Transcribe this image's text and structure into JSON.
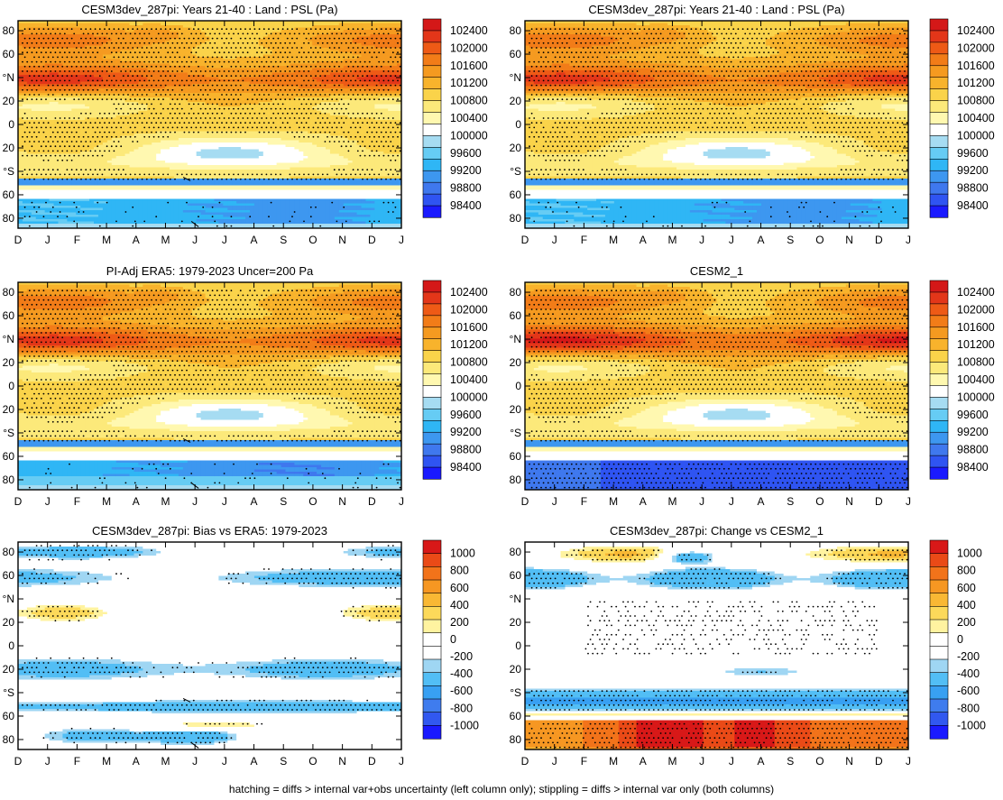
{
  "caption": "hatching = diffs > internal var+obs uncertainty (left column only); stippling = diffs > internal var only (both columns)",
  "colors": {
    "psl_scale": [
      "#1a1aff",
      "#2f54f2",
      "#3f78ee",
      "#3d97f0",
      "#2fb6f5",
      "#66ccf4",
      "#a6dcf2",
      "#ffffff",
      "#fff8b0",
      "#fce97a",
      "#fad34a",
      "#f8b32c",
      "#f59a20",
      "#f27c18",
      "#ee5a16",
      "#e33619",
      "#d41818"
    ],
    "diff_scale": [
      "#1a1aff",
      "#3158f0",
      "#3f7cee",
      "#38a0f2",
      "#52bef5",
      "#9fd6f3",
      "#ffffff",
      "#ffffff",
      "#fff3a0",
      "#fcd95a",
      "#f9b834",
      "#f69722",
      "#f2731a",
      "#ea4a17",
      "#d81818"
    ]
  },
  "chart_data": [
    {
      "id": "p1",
      "type": "heatmap",
      "title": "CESM3dev_287pi: Years 21-40 : Land : PSL (Pa)",
      "x_tick_labels": [
        "D",
        "J",
        "F",
        "M",
        "A",
        "M",
        "J",
        "J",
        "A",
        "S",
        "O",
        "N",
        "D",
        "J"
      ],
      "y_tick_labels": [
        "80",
        "60",
        "°N",
        "20",
        "0",
        "20",
        "°S",
        "60",
        "80"
      ],
      "colorbar_labels": [
        "102400",
        "102000",
        "101600",
        "101200",
        "100800",
        "100400",
        "100000",
        "99600",
        "99200",
        "98800",
        "98400"
      ],
      "fields": "psl",
      "variant": 0,
      "stipple": true,
      "hatch": true
    },
    {
      "id": "p2",
      "type": "heatmap",
      "title": "CESM3dev_287pi: Years 21-40 : Land : PSL (Pa)",
      "x_tick_labels": [
        "D",
        "J",
        "F",
        "M",
        "A",
        "M",
        "J",
        "J",
        "A",
        "S",
        "O",
        "N",
        "D",
        "J"
      ],
      "y_tick_labels": [
        "80",
        "60",
        "°N",
        "20",
        "0",
        "20",
        "°S",
        "60",
        "80"
      ],
      "colorbar_labels": [
        "102400",
        "102000",
        "101600",
        "101200",
        "100800",
        "100400",
        "100000",
        "99600",
        "99200",
        "98800",
        "98400"
      ],
      "fields": "psl",
      "variant": 0,
      "stipple": true,
      "hatch": false
    },
    {
      "id": "p3",
      "type": "heatmap",
      "title": "PI-Adj ERA5: 1979-2023 Uncer=200 Pa",
      "x_tick_labels": [
        "D",
        "J",
        "F",
        "M",
        "A",
        "M",
        "J",
        "J",
        "A",
        "S",
        "O",
        "N",
        "D",
        "J"
      ],
      "y_tick_labels": [
        "80",
        "60",
        "°N",
        "20",
        "0",
        "20",
        "°S",
        "60",
        "80"
      ],
      "colorbar_labels": [
        "102400",
        "102000",
        "101600",
        "101200",
        "100800",
        "100400",
        "100000",
        "99600",
        "99200",
        "98800",
        "98400"
      ],
      "fields": "psl",
      "variant": 1,
      "stipple": true,
      "hatch": true
    },
    {
      "id": "p4",
      "type": "heatmap",
      "title": "CESM2_1",
      "x_tick_labels": [
        "D",
        "J",
        "F",
        "M",
        "A",
        "M",
        "J",
        "J",
        "A",
        "S",
        "O",
        "N",
        "D",
        "J"
      ],
      "y_tick_labels": [
        "80",
        "60",
        "°N",
        "20",
        "0",
        "20",
        "°S",
        "60",
        "80"
      ],
      "colorbar_labels": [
        "102400",
        "102000",
        "101600",
        "101200",
        "100800",
        "100400",
        "100000",
        "99600",
        "99200",
        "98800",
        "98400"
      ],
      "fields": "psl",
      "variant": 2,
      "stipple": true,
      "hatch": false
    },
    {
      "id": "p5",
      "type": "heatmap",
      "title": "CESM3dev_287pi: Bias vs ERA5: 1979-2023",
      "x_tick_labels": [
        "D",
        "J",
        "F",
        "M",
        "A",
        "M",
        "J",
        "J",
        "A",
        "S",
        "O",
        "N",
        "D",
        "J"
      ],
      "y_tick_labels": [
        "80",
        "60",
        "°N",
        "20",
        "0",
        "20",
        "°S",
        "60",
        "80"
      ],
      "colorbar_labels": [
        "1000",
        "800",
        "600",
        "400",
        "200",
        "0",
        "-200",
        "-400",
        "-600",
        "-800",
        "-1000"
      ],
      "fields": "bias",
      "variant": 0,
      "stipple": true,
      "hatch": true
    },
    {
      "id": "p6",
      "type": "heatmap",
      "title": "CESM3dev_287pi: Change vs CESM2_1",
      "x_tick_labels": [
        "D",
        "J",
        "F",
        "M",
        "A",
        "M",
        "J",
        "J",
        "A",
        "S",
        "O",
        "N",
        "D",
        "J"
      ],
      "y_tick_labels": [
        "80",
        "60",
        "°N",
        "20",
        "0",
        "20",
        "°S",
        "60",
        "80"
      ],
      "colorbar_labels": [
        "1000",
        "800",
        "600",
        "400",
        "200",
        "0",
        "-200",
        "-400",
        "-600",
        "-800",
        "-1000"
      ],
      "fields": "change",
      "variant": 0,
      "stipple": true,
      "hatch": false
    }
  ]
}
